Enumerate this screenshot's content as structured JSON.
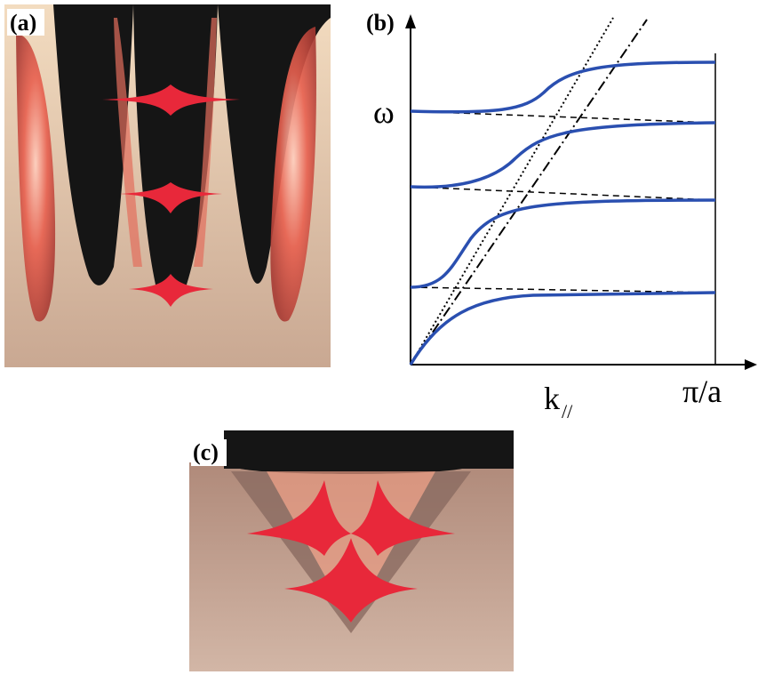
{
  "panels": [
    {
      "label": "(a)"
    },
    {
      "label": "(b)",
      "y_label": "ω",
      "x_label": {
        "base": "k",
        "subscript": "//"
      },
      "x_end_label": "π/a"
    },
    {
      "label": "(c)"
    }
  ]
}
